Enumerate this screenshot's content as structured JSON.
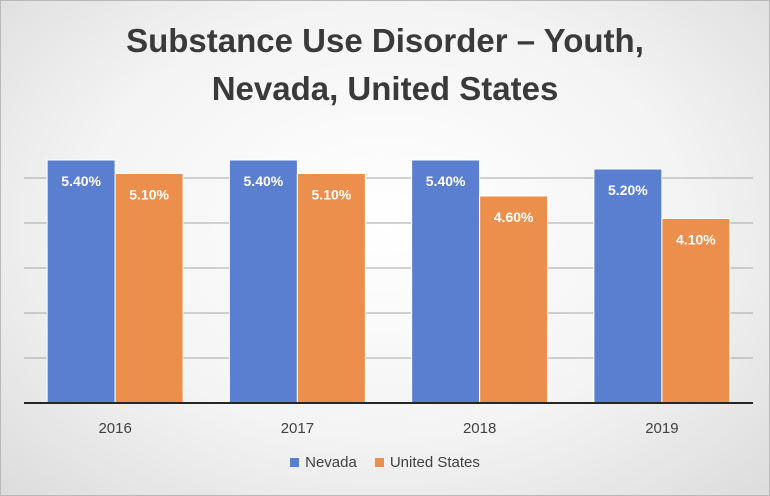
{
  "chart_data": {
    "type": "bar",
    "title_lines": [
      "Substance Use Disorder – Youth,",
      "Nevada, United States"
    ],
    "categories": [
      "2016",
      "2017",
      "2018",
      "2019"
    ],
    "series": [
      {
        "name": "Nevada",
        "values": [
          5.4,
          5.4,
          5.4,
          5.2
        ],
        "labels": [
          "5.40%",
          "5.40%",
          "5.40%",
          "5.20%"
        ],
        "color": "#5b7fd0"
      },
      {
        "name": "United States",
        "values": [
          5.1,
          5.1,
          4.6,
          4.1
        ],
        "labels": [
          "5.10%",
          "5.10%",
          "4.60%",
          "4.10%"
        ],
        "color": "#ed8f4c"
      }
    ],
    "ylim": [
      0,
      6
    ],
    "grid": true,
    "legend_position": "bottom"
  }
}
